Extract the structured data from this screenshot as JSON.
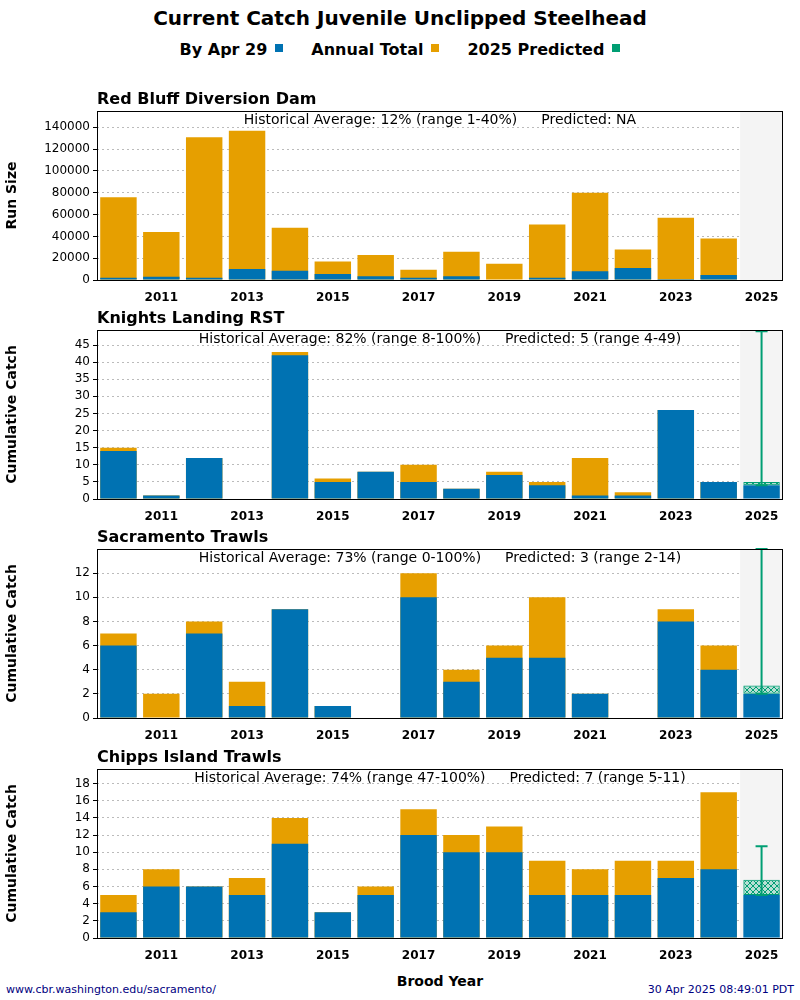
{
  "title": "Current Catch Juvenile Unclipped Steelhead",
  "x_label": "Brood Year",
  "footer_left": "www.cbr.washington.edu/sacramento/",
  "footer_right": "30 Apr 2025 08:49:01 PDT",
  "chart_data": [
    {
      "type": "bar",
      "title": "Red Bluff Diversion Dam",
      "annotation": [
        "Historical Average: 12% (range 1-40%)",
        "Predicted: NA"
      ],
      "ylabel": "Run Size",
      "categories": [
        null,
        "2011",
        null,
        "2013",
        null,
        "2015",
        null,
        "2017",
        null,
        "2019",
        null,
        "2021",
        null,
        "2023",
        null,
        "2025"
      ],
      "series": [
        {
          "name": "By Apr 29",
          "color": "#0072b2",
          "values": [
            2000,
            3000,
            2000,
            10000,
            8500,
            5500,
            3500,
            2000,
            3500,
            500,
            2000,
            8000,
            11000,
            1000,
            4500,
            null
          ]
        },
        {
          "name": "Annual Total",
          "color": "#e69f00",
          "values": [
            76000,
            44000,
            131000,
            137000,
            48000,
            17000,
            23000,
            9500,
            26000,
            15000,
            51000,
            80000,
            28000,
            57000,
            38000,
            null
          ]
        },
        {
          "name": "2025 Predicted",
          "color": "#009e73",
          "values": [
            null,
            null,
            null,
            null,
            null,
            null,
            null,
            null,
            null,
            null,
            null,
            null,
            null,
            null,
            null,
            null
          ],
          "error_low": [
            null,
            null,
            null,
            null,
            null,
            null,
            null,
            null,
            null,
            null,
            null,
            null,
            null,
            null,
            null,
            null
          ],
          "error_high": [
            null,
            null,
            null,
            null,
            null,
            null,
            null,
            null,
            null,
            null,
            null,
            null,
            null,
            null,
            null,
            null
          ]
        }
      ],
      "ylim": [
        0,
        155000
      ],
      "yticks": [
        0,
        20000,
        40000,
        60000,
        80000,
        100000,
        120000,
        140000
      ],
      "grid": true
    },
    {
      "type": "bar",
      "title": "Knights Landing RST",
      "annotation": [
        "Historical Average: 82% (range 8-100%)",
        "Predicted: 5 (range 4-49)"
      ],
      "ylabel": "Cumulative Catch",
      "categories": [
        null,
        "2011",
        null,
        "2013",
        null,
        "2015",
        null,
        "2017",
        null,
        "2019",
        null,
        "2021",
        null,
        "2023",
        null,
        "2025"
      ],
      "series": [
        {
          "name": "By Apr 29",
          "color": "#0072b2",
          "values": [
            14,
            1,
            12,
            0,
            42,
            5,
            8,
            5,
            3,
            7,
            4,
            1,
            1,
            26,
            5,
            4
          ]
        },
        {
          "name": "Annual Total",
          "color": "#e69f00",
          "values": [
            15,
            1,
            12,
            0,
            43,
            6,
            8,
            10,
            3,
            8,
            5,
            12,
            2,
            26,
            5,
            null
          ]
        },
        {
          "name": "2025 Predicted",
          "color": "#009e73",
          "values": [
            null,
            null,
            null,
            null,
            null,
            null,
            null,
            null,
            null,
            null,
            null,
            null,
            null,
            null,
            null,
            5
          ],
          "error_low": [
            null,
            null,
            null,
            null,
            null,
            null,
            null,
            null,
            null,
            null,
            null,
            null,
            null,
            null,
            null,
            4
          ],
          "error_high": [
            null,
            null,
            null,
            null,
            null,
            null,
            null,
            null,
            null,
            null,
            null,
            null,
            null,
            null,
            null,
            49
          ]
        }
      ],
      "ylim": [
        0,
        49.4
      ],
      "yticks": [
        0,
        5,
        10,
        15,
        20,
        25,
        30,
        35,
        40,
        45
      ],
      "grid": true
    },
    {
      "type": "bar",
      "title": "Sacramento Trawls",
      "annotation": [
        "Historical Average: 73% (range 0-100%)",
        "Predicted: 3 (range 2-14)"
      ],
      "ylabel": "Cumulative Catch",
      "categories": [
        null,
        "2011",
        null,
        "2013",
        null,
        "2015",
        null,
        "2017",
        null,
        "2019",
        null,
        "2021",
        null,
        "2023",
        null,
        "2025"
      ],
      "series": [
        {
          "name": "By Apr 29",
          "color": "#0072b2",
          "values": [
            6,
            0,
            7,
            1,
            9,
            1,
            0,
            10,
            3,
            5,
            5,
            2,
            0,
            8,
            4,
            2
          ]
        },
        {
          "name": "Annual Total",
          "color": "#e69f00",
          "values": [
            7,
            2,
            8,
            3,
            9,
            1,
            0,
            12,
            4,
            6,
            10,
            2,
            0,
            9,
            6,
            null
          ]
        },
        {
          "name": "2025 Predicted",
          "color": "#009e73",
          "values": [
            null,
            null,
            null,
            null,
            null,
            null,
            null,
            null,
            null,
            null,
            null,
            null,
            null,
            null,
            null,
            2.7
          ],
          "error_low": [
            null,
            null,
            null,
            null,
            null,
            null,
            null,
            null,
            null,
            null,
            null,
            null,
            null,
            null,
            null,
            2
          ],
          "error_high": [
            null,
            null,
            null,
            null,
            null,
            null,
            null,
            null,
            null,
            null,
            null,
            null,
            null,
            null,
            null,
            14
          ]
        }
      ],
      "ylim": [
        0,
        14
      ],
      "yticks": [
        0,
        2,
        4,
        6,
        8,
        10,
        12
      ],
      "grid": true
    },
    {
      "type": "bar",
      "title": "Chipps Island Trawls",
      "annotation": [
        "Historical Average: 74% (range 47-100%)",
        "Predicted: 7 (range 5-11)"
      ],
      "ylabel": "Cumulative Catch",
      "categories": [
        null,
        "2011",
        null,
        "2013",
        null,
        "2015",
        null,
        "2017",
        null,
        "2019",
        null,
        "2021",
        null,
        "2023",
        null,
        "2025"
      ],
      "series": [
        {
          "name": "By Apr 29",
          "color": "#0072b2",
          "values": [
            3,
            6,
            6,
            5,
            11,
            3,
            5,
            12,
            10,
            10,
            5,
            5,
            5,
            7,
            8,
            5
          ]
        },
        {
          "name": "Annual Total",
          "color": "#e69f00",
          "values": [
            5,
            8,
            6,
            7,
            14,
            3,
            6,
            15,
            12,
            13,
            9,
            8,
            9,
            9,
            17,
            null
          ]
        },
        {
          "name": "2025 Predicted",
          "color": "#009e73",
          "values": [
            null,
            null,
            null,
            null,
            null,
            null,
            null,
            null,
            null,
            null,
            null,
            null,
            null,
            null,
            null,
            6.8
          ],
          "error_low": [
            null,
            null,
            null,
            null,
            null,
            null,
            null,
            null,
            null,
            null,
            null,
            null,
            null,
            null,
            null,
            5
          ],
          "error_high": [
            null,
            null,
            null,
            null,
            null,
            null,
            null,
            null,
            null,
            null,
            null,
            null,
            null,
            null,
            null,
            10.7
          ]
        }
      ],
      "ylim": [
        0,
        19.7
      ],
      "yticks": [
        0,
        2,
        4,
        6,
        8,
        10,
        12,
        14,
        16,
        18
      ],
      "grid": true
    }
  ]
}
